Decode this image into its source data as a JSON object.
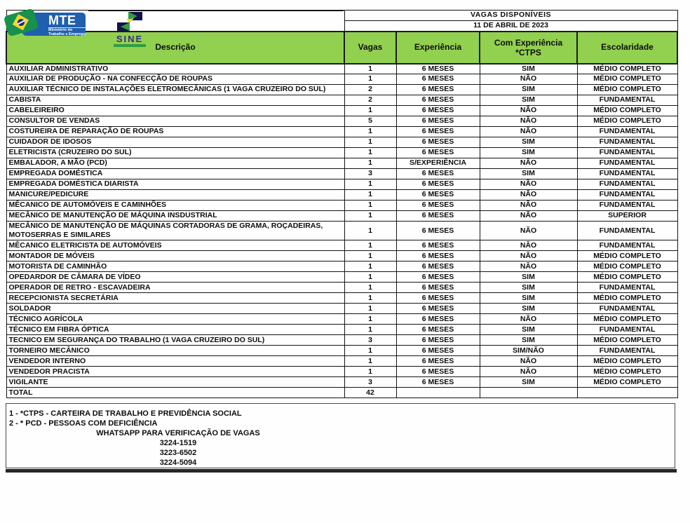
{
  "logos": {
    "mte": {
      "acronym": "MTE",
      "ministry_line1": "Ministério do",
      "ministry_line2": "Trabalho e Emprego"
    },
    "sine": {
      "name": "SINE"
    }
  },
  "header": {
    "title": "VAGAS DISPONÍVEIS",
    "date": "11 DE ABRIL DE 2023"
  },
  "table": {
    "columns": {
      "descricao": "Descrição",
      "vagas": "Vagas",
      "experiencia": "Experiência",
      "com_experiencia_line1": "Com Experiência",
      "com_experiencia_line2": "*CTPS",
      "escolaridade": "Escolaridade"
    },
    "rows": [
      {
        "desc": "AUXILIAR ADMINISTRATIVO",
        "vagas": "1",
        "exp": "6 MESES",
        "ctps": "SIM",
        "esc": "MÉDIO COMPLETO"
      },
      {
        "desc": "AUXILIAR DE PRODUÇÃO - NA CONFECÇÃO DE ROUPAS",
        "vagas": "1",
        "exp": "6 MESES",
        "ctps": "NÃO",
        "esc": "MÉDIO COMPLETO"
      },
      {
        "desc": "AUXILIAR TÉCNICO DE INSTALAÇÕES ELETROMECÂNICAS (1 VAGA CRUZEIRO DO SUL)",
        "vagas": "2",
        "exp": "6 MESES",
        "ctps": "SIM",
        "esc": "MÉDIO COMPLETO"
      },
      {
        "desc": "CABISTA",
        "vagas": "2",
        "exp": "6 MESES",
        "ctps": "SIM",
        "esc": "FUNDAMENTAL"
      },
      {
        "desc": "CABELEIREIRO",
        "vagas": "1",
        "exp": "6 MESES",
        "ctps": "NÃO",
        "esc": "MÉDIO COMPLETO"
      },
      {
        "desc": "CONSULTOR DE VENDAS",
        "vagas": "5",
        "exp": "6 MESES",
        "ctps": "NÃO",
        "esc": "MÉDIO COMPLETO"
      },
      {
        "desc": "COSTUREIRA DE REPARAÇÃO DE ROUPAS",
        "vagas": "1",
        "exp": "6 MESES",
        "ctps": "NÃO",
        "esc": "FUNDAMENTAL"
      },
      {
        "desc": "CUIDADOR DE IDOSOS",
        "vagas": "1",
        "exp": "6 MESES",
        "ctps": "SIM",
        "esc": "FUNDAMENTAL"
      },
      {
        "desc": "ELETRICISTA (CRUZEIRO DO SUL)",
        "vagas": "1",
        "exp": "6 MESES",
        "ctps": "SIM",
        "esc": "FUNDAMENTAL"
      },
      {
        "desc": "EMBALADOR, A MÃO (PCD)",
        "vagas": "1",
        "exp": "S/EXPERIÊNCIA",
        "ctps": "NÃO",
        "esc": "FUNDAMENTAL"
      },
      {
        "desc": "EMPREGADA DOMÉSTICA",
        "vagas": "3",
        "exp": "6 MESES",
        "ctps": "SIM",
        "esc": "FUNDAMENTAL"
      },
      {
        "desc": "EMPREGADA DOMÉSTICA DIARISTA",
        "vagas": "1",
        "exp": "6 MESES",
        "ctps": "NÃO",
        "esc": "FUNDAMENTAL"
      },
      {
        "desc": "MANICURE/PEDICURE",
        "vagas": "1",
        "exp": "6 MESES",
        "ctps": "NÃO",
        "esc": "FUNDAMENTAL"
      },
      {
        "desc": "MÊCANICO DE AUTOMÓVEIS E CAMINHÕES",
        "vagas": "1",
        "exp": "6 MESES",
        "ctps": "NÃO",
        "esc": "FUNDAMENTAL"
      },
      {
        "desc": "MECÂNICO DE MANUTENÇÃO DE MÁQUINA INSDUSTRIAL",
        "vagas": "1",
        "exp": "6 MESES",
        "ctps": "NÃO",
        "esc": "SUPERIOR"
      },
      {
        "desc": "MECÂNICO DE MANUTENÇÃO DE MÁQUINAS CORTADORAS DE GRAMA, ROÇADEIRAS, MOTOSERRAS E SIMILARES",
        "vagas": "1",
        "exp": "6 MESES",
        "ctps": "NÃO",
        "esc": "FUNDAMENTAL"
      },
      {
        "desc": "MÊCANICO ELETRICISTA DE AUTOMÓVEIS",
        "vagas": "1",
        "exp": "6 MESES",
        "ctps": "NÃO",
        "esc": "FUNDAMENTAL"
      },
      {
        "desc": "MONTADOR DE MÓVEIS",
        "vagas": "1",
        "exp": "6 MESES",
        "ctps": "NÃO",
        "esc": "MÉDIO COMPLETO"
      },
      {
        "desc": "MOTORISTA DE CAMINHÃO",
        "vagas": "1",
        "exp": "6 MESES",
        "ctps": "NÃO",
        "esc": "MÉDIO COMPLETO"
      },
      {
        "desc": "OPEDARDOR DE CÂMARA DE VÍDEO",
        "vagas": "1",
        "exp": "6 MESES",
        "ctps": "SIM",
        "esc": "MÉDIO COMPLETO"
      },
      {
        "desc": "OPERADOR DE RETRO - ESCAVADEIRA",
        "vagas": "1",
        "exp": "6 MESES",
        "ctps": "SIM",
        "esc": "FUNDAMENTAL"
      },
      {
        "desc": "RECEPCIONISTA SECRETÁRIA",
        "vagas": "1",
        "exp": "6 MESES",
        "ctps": "SIM",
        "esc": "MÉDIO COMPLETO"
      },
      {
        "desc": "SOLDADOR",
        "vagas": "1",
        "exp": "6 MESES",
        "ctps": "SIM",
        "esc": "FUNDAMENTAL"
      },
      {
        "desc": "TÉCNICO AGRÍCOLA",
        "vagas": "1",
        "exp": "6 MESES",
        "ctps": "NÃO",
        "esc": "MÉDIO COMPLETO"
      },
      {
        "desc": "TÉCNICO EM FIBRA ÓPTICA",
        "vagas": "1",
        "exp": "6 MESES",
        "ctps": "SIM",
        "esc": "FUNDAMENTAL"
      },
      {
        "desc": "TECNICO EM SEGURANÇA DO TRABALHO (1 VAGA CRUZEIRO DO SUL)",
        "vagas": "3",
        "exp": "6 MESES",
        "ctps": "SIM",
        "esc": "MÉDIO COMPLETO"
      },
      {
        "desc": "TORNEIRO MECÂNICO",
        "vagas": "1",
        "exp": "6 MESES",
        "ctps": "SIM/NÃO",
        "esc": "FUNDAMENTAL"
      },
      {
        "desc": "VENDEDOR INTERNO",
        "vagas": "1",
        "exp": "6 MESES",
        "ctps": "NÃO",
        "esc": "MÉDIO COMPLETO"
      },
      {
        "desc": "VENDEDOR PRACISTA",
        "vagas": "1",
        "exp": "6 MESES",
        "ctps": "NÃO",
        "esc": "MÉDIO COMPLETO"
      },
      {
        "desc": "VIGILANTE",
        "vagas": "3",
        "exp": "6 MESES",
        "ctps": "SIM",
        "esc": "MÉDIO COMPLETO"
      }
    ],
    "total": {
      "label": "TOTAL",
      "vagas": "42"
    }
  },
  "footnotes": {
    "note1": "1 - *CTPS - CARTEIRA DE TRABALHO E PREVIDÊNCIA SOCIAL",
    "note2": "2 - * PCD - PESSOAS COM DEFICIÊNCIA",
    "whatsapp_label": "WHATSAPP PARA VERIFICAÇÃO DE VAGAS",
    "phones": [
      "3224-1519",
      "3223-6502",
      "3224-5094"
    ]
  },
  "colors": {
    "header_green": "#92d050",
    "mte_blue": "#1f5fae",
    "sine_purple": "#3a2d86",
    "flag_green": "#17914d",
    "flag_yellow": "#f8d62b",
    "flag_blue": "#1a2a7a",
    "border": "#141414"
  }
}
